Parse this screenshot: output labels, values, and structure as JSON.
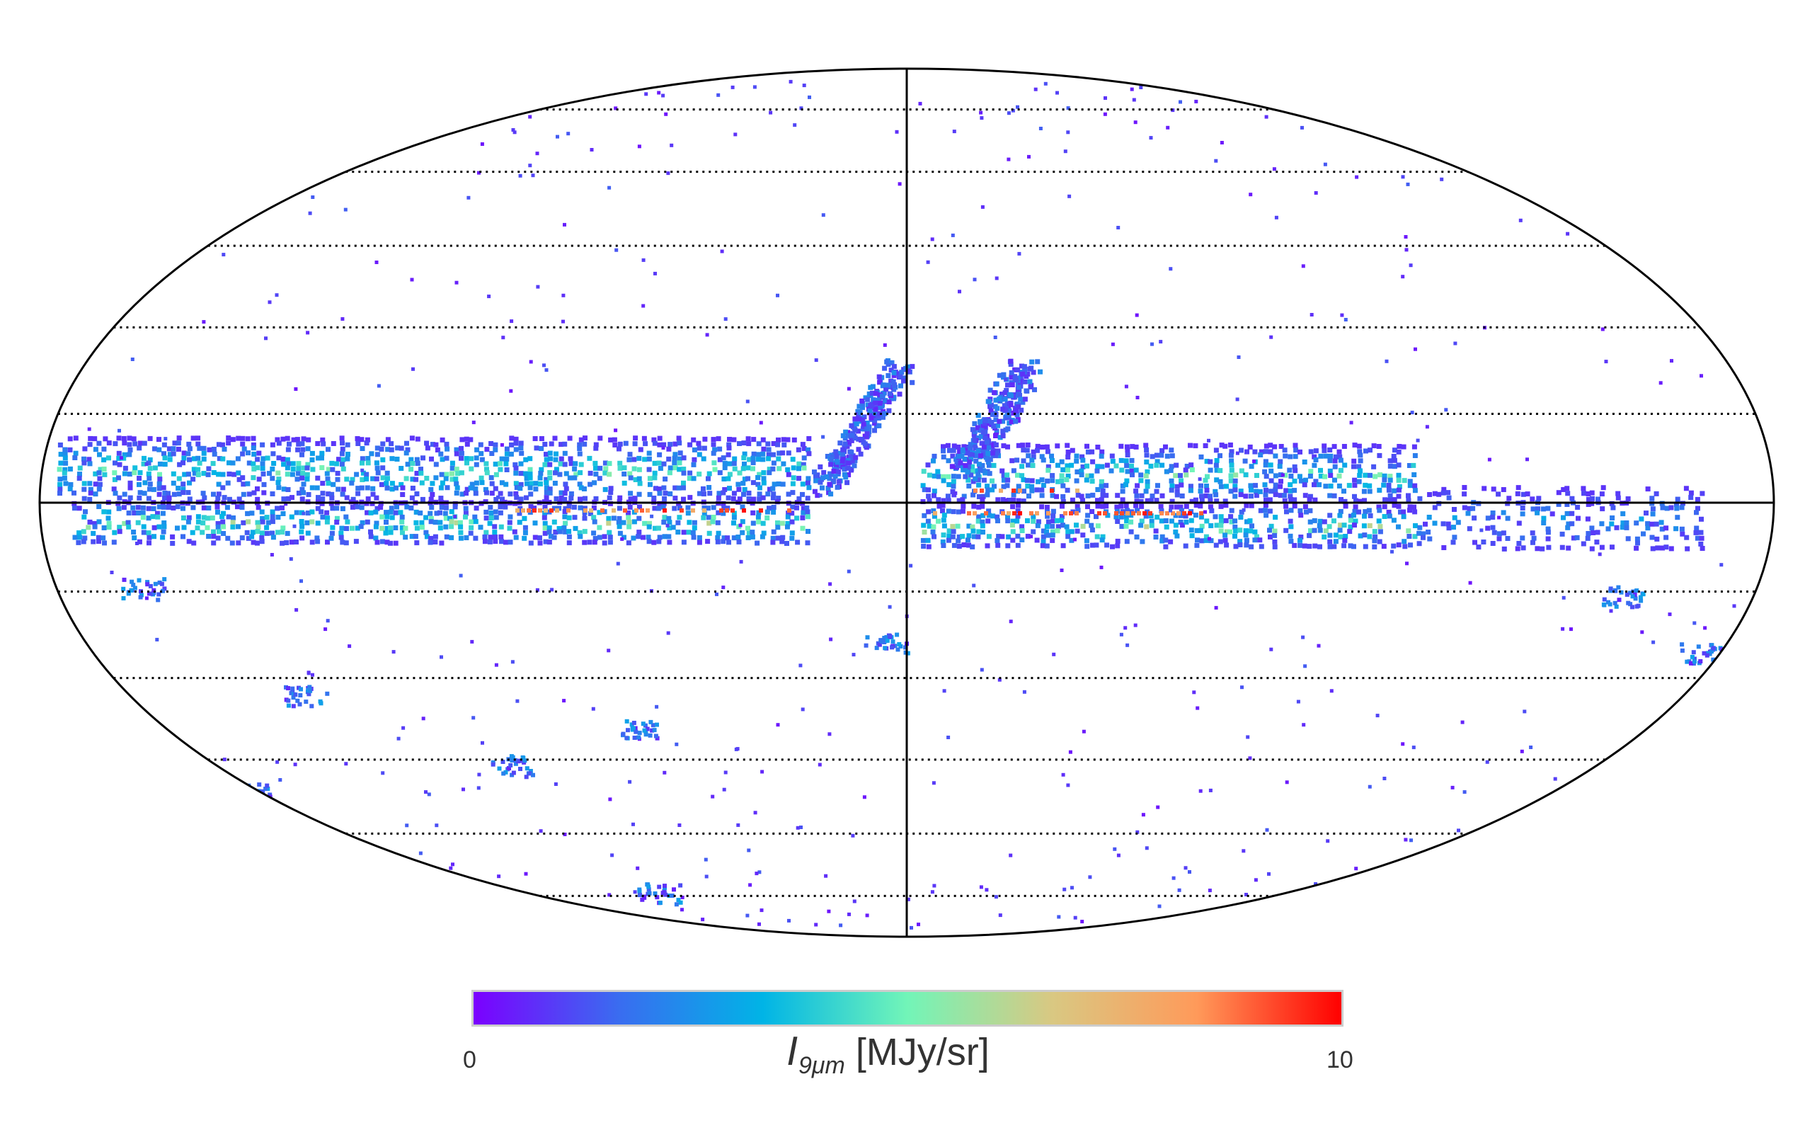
{
  "map": {
    "projection": "mollweide",
    "graticule": "dotted",
    "colormap": [
      "#7b00ff",
      "#3a6cf0",
      "#00b4e6",
      "#72f5b8",
      "#d9c882",
      "#ff9a5a",
      "#ff0000"
    ],
    "pixel_color_low": "#4040f0"
  },
  "colorbar": {
    "min_label": "0",
    "max_label": "10",
    "quantity_symbol": "I",
    "quantity_subscript": "9μm",
    "unit": "[MJy/sr]",
    "border_color": "#cccccc"
  }
}
